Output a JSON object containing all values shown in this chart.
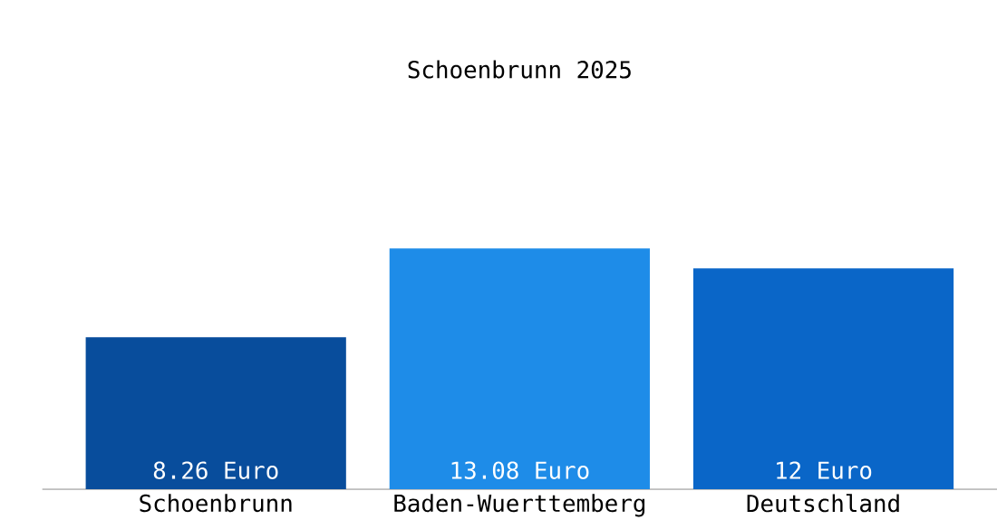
{
  "chart_data": {
    "type": "bar",
    "title": "Schoenbrunn 2025",
    "categories": [
      "Schoenbrunn",
      "Baden-Wuerttemberg",
      "Deutschland"
    ],
    "values": [
      8.26,
      13.08,
      12
    ],
    "colors": [
      "#084d9c",
      "#1e8ce8",
      "#0a66c8"
    ],
    "value_labels": [
      "8.26 Euro",
      "13.08 Euro",
      "12 Euro"
    ]
  }
}
